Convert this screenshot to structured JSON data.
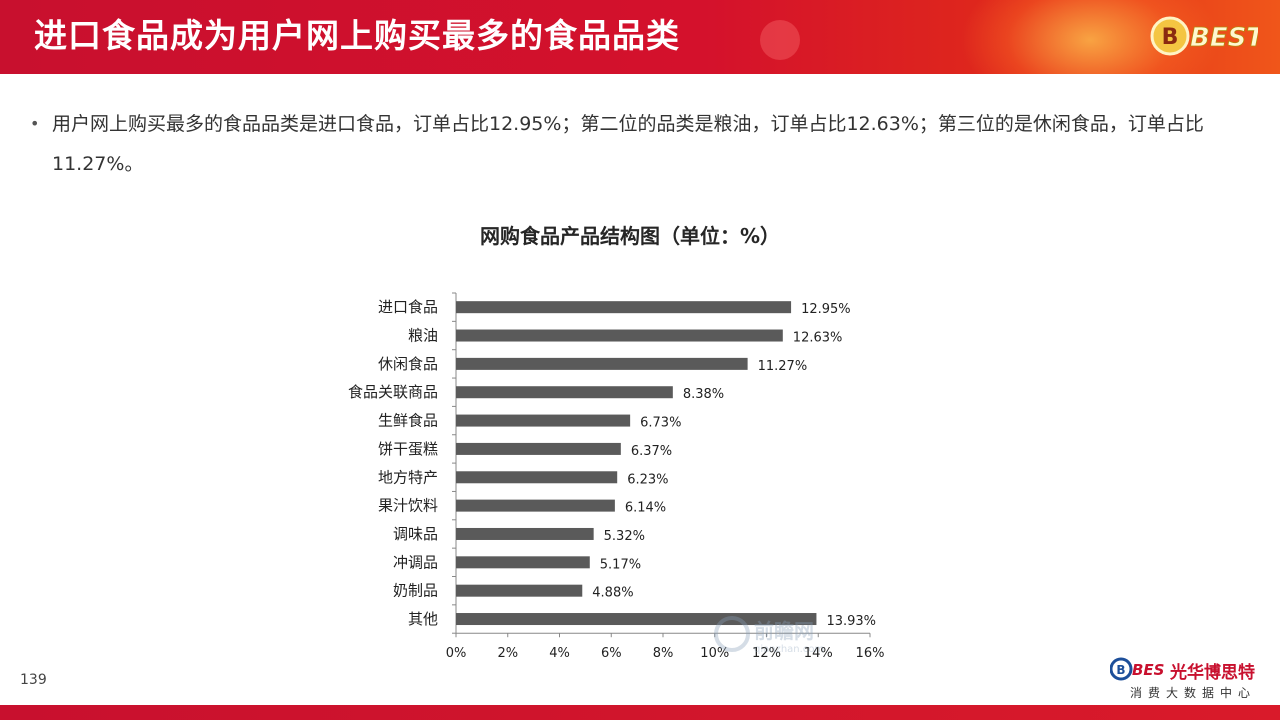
{
  "header": {
    "title": "进口食品成为用户网上购买最多的食品品类",
    "logo_text": "BEST"
  },
  "bullet": {
    "text": "用户网上购买最多的食品品类是进口食品，订单占比12.95%；第二位的品类是粮油，订单占比12.63%；第三位的是休闲食品，订单占比11.27%。"
  },
  "chart_data": {
    "type": "bar",
    "orientation": "horizontal",
    "title": "网购食品产品结构图（单位：%）",
    "categories": [
      "进口食品",
      "粮油",
      "休闲食品",
      "食品关联商品",
      "生鲜食品",
      "饼干蛋糕",
      "地方特产",
      "果汁饮料",
      "调味品",
      "冲调品",
      "奶制品",
      "其他"
    ],
    "values": [
      12.95,
      12.63,
      11.27,
      8.38,
      6.73,
      6.37,
      6.23,
      6.14,
      5.32,
      5.17,
      4.88,
      13.93
    ],
    "value_labels": [
      "12.95%",
      "12.63%",
      "11.27%",
      "8.38%",
      "6.73%",
      "6.37%",
      "6.23%",
      "6.14%",
      "5.32%",
      "5.17%",
      "4.88%",
      "13.93%"
    ],
    "xlim": [
      0,
      16
    ],
    "xticks": [
      0,
      2,
      4,
      6,
      8,
      10,
      12,
      14,
      16
    ],
    "xtick_labels": [
      "0%",
      "2%",
      "4%",
      "6%",
      "8%",
      "10%",
      "12%",
      "14%",
      "16%"
    ],
    "bar_color": "#5a5a5a",
    "grid": false
  },
  "watermark": {
    "text": "前瞻网",
    "subtext": "qianzhan.com"
  },
  "footer": {
    "page_number": "139",
    "brand_mark": "BEST",
    "brand_name": "光华博思特",
    "brand_sub": "消费大数据中心",
    "accent_color": "#c8102e"
  }
}
